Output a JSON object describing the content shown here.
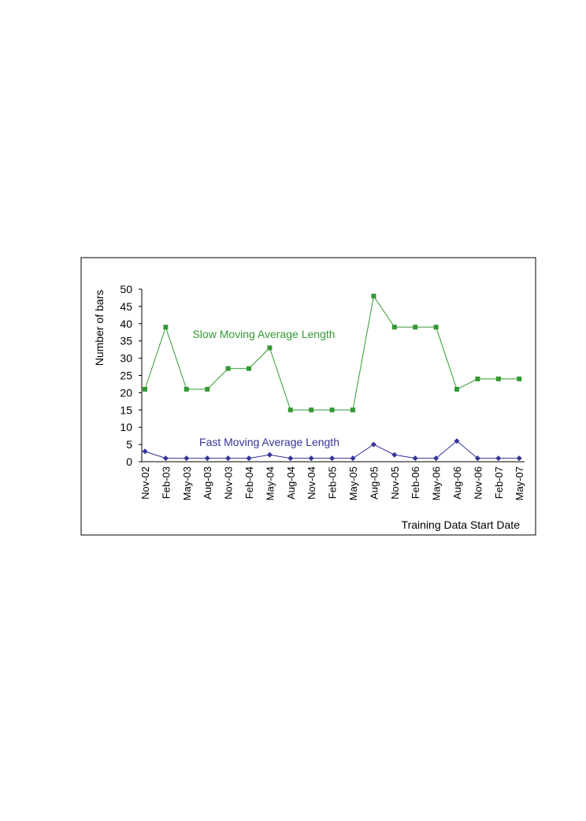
{
  "chart_data": {
    "type": "line",
    "y_label": "Number of bars",
    "x_label": "Training Data Start Date",
    "categories": [
      "Nov-02",
      "Feb-03",
      "May-03",
      "Aug-03",
      "Nov-03",
      "Feb-04",
      "May-04",
      "Aug-04",
      "Nov-04",
      "Feb-05",
      "May-05",
      "Aug-05",
      "Nov-05",
      "Feb-06",
      "May-06",
      "Aug-06",
      "Nov-06",
      "Feb-07",
      "May-07"
    ],
    "series": [
      {
        "name": "Slow Moving Average Length",
        "color": "#339933",
        "marker": "square",
        "values": [
          21,
          39,
          21,
          21,
          27,
          27,
          33,
          15,
          15,
          15,
          15,
          48,
          39,
          39,
          39,
          21,
          24,
          24,
          24
        ]
      },
      {
        "name": "Fast Moving Average Length",
        "color": "#333399",
        "marker": "diamond",
        "values": [
          3,
          1,
          1,
          1,
          1,
          1,
          2,
          1,
          1,
          1,
          1,
          5,
          2,
          1,
          1,
          6,
          1,
          1,
          1
        ]
      }
    ],
    "ylim": [
      0,
      50
    ],
    "yticks": [
      0,
      5,
      10,
      15,
      20,
      25,
      30,
      35,
      40,
      45,
      50
    ],
    "grid": false
  }
}
